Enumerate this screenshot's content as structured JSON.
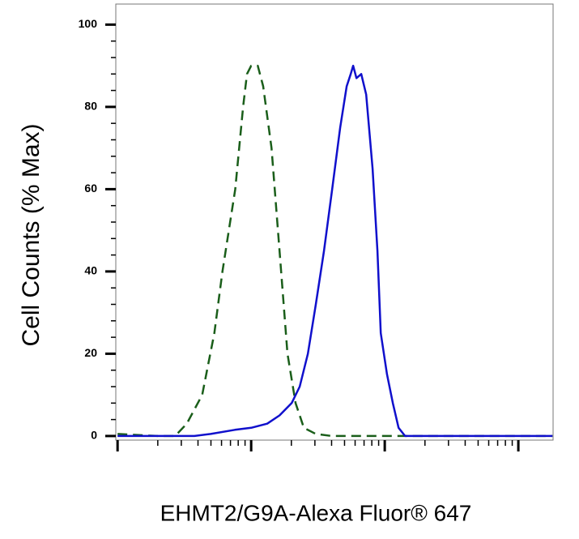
{
  "chart_data": {
    "type": "line",
    "y_label": "Cell Counts (% Max)",
    "x_label": "EHMT2/G9A-Alexa Fluor® 647",
    "x_log": true,
    "xlim": [
      0.97,
      1820
    ],
    "xticks": [
      1,
      10,
      100,
      1000
    ],
    "xminor": [
      2,
      3,
      4,
      5,
      6,
      7,
      8,
      9,
      20,
      30,
      40,
      50,
      60,
      70,
      80,
      90,
      200,
      300,
      400,
      500,
      600,
      700,
      800,
      900
    ],
    "ylim": [
      -1,
      105
    ],
    "yticks": [
      0,
      20,
      40,
      60,
      80,
      100
    ],
    "yminor": [
      4,
      8,
      12,
      16,
      24,
      28,
      32,
      36,
      44,
      48,
      52,
      56,
      64,
      68,
      72,
      76,
      84,
      88,
      92,
      96
    ],
    "series": [
      {
        "color": "#1a5e1a",
        "dashed": true,
        "x": [
          1,
          2,
          2.7,
          3.3,
          4.3,
          5.3,
          6.1,
          7.6,
          8.7,
          9.3,
          10,
          11.2,
          12.3,
          14.2,
          16.3,
          18.7,
          21.5,
          24.8,
          30.5,
          40,
          1800
        ],
        "values": [
          0.5,
          0,
          0,
          3,
          10,
          25,
          40,
          60,
          80,
          88,
          90,
          90,
          85,
          70,
          45,
          20,
          8,
          2,
          0.5,
          0,
          0
        ]
      },
      {
        "color": "#1010cc",
        "dashed": false,
        "x": [
          1,
          3.76,
          4.98,
          7.56,
          10,
          13.2,
          16.3,
          20.1,
          23.1,
          26.6,
          30.5,
          35.1,
          40.4,
          46.4,
          51.9,
          55.6,
          58,
          61.4,
          66.7,
          72.6,
          81.1,
          88.2,
          93.3,
          104,
          115,
          127,
          142,
          1800
        ],
        "values": [
          0,
          0,
          0.5,
          1.5,
          2,
          3,
          5,
          8,
          12,
          20,
          32,
          45,
          60,
          75,
          85,
          88,
          90,
          87,
          88,
          83,
          65,
          45,
          25,
          15,
          8,
          2,
          0,
          0
        ]
      }
    ]
  }
}
